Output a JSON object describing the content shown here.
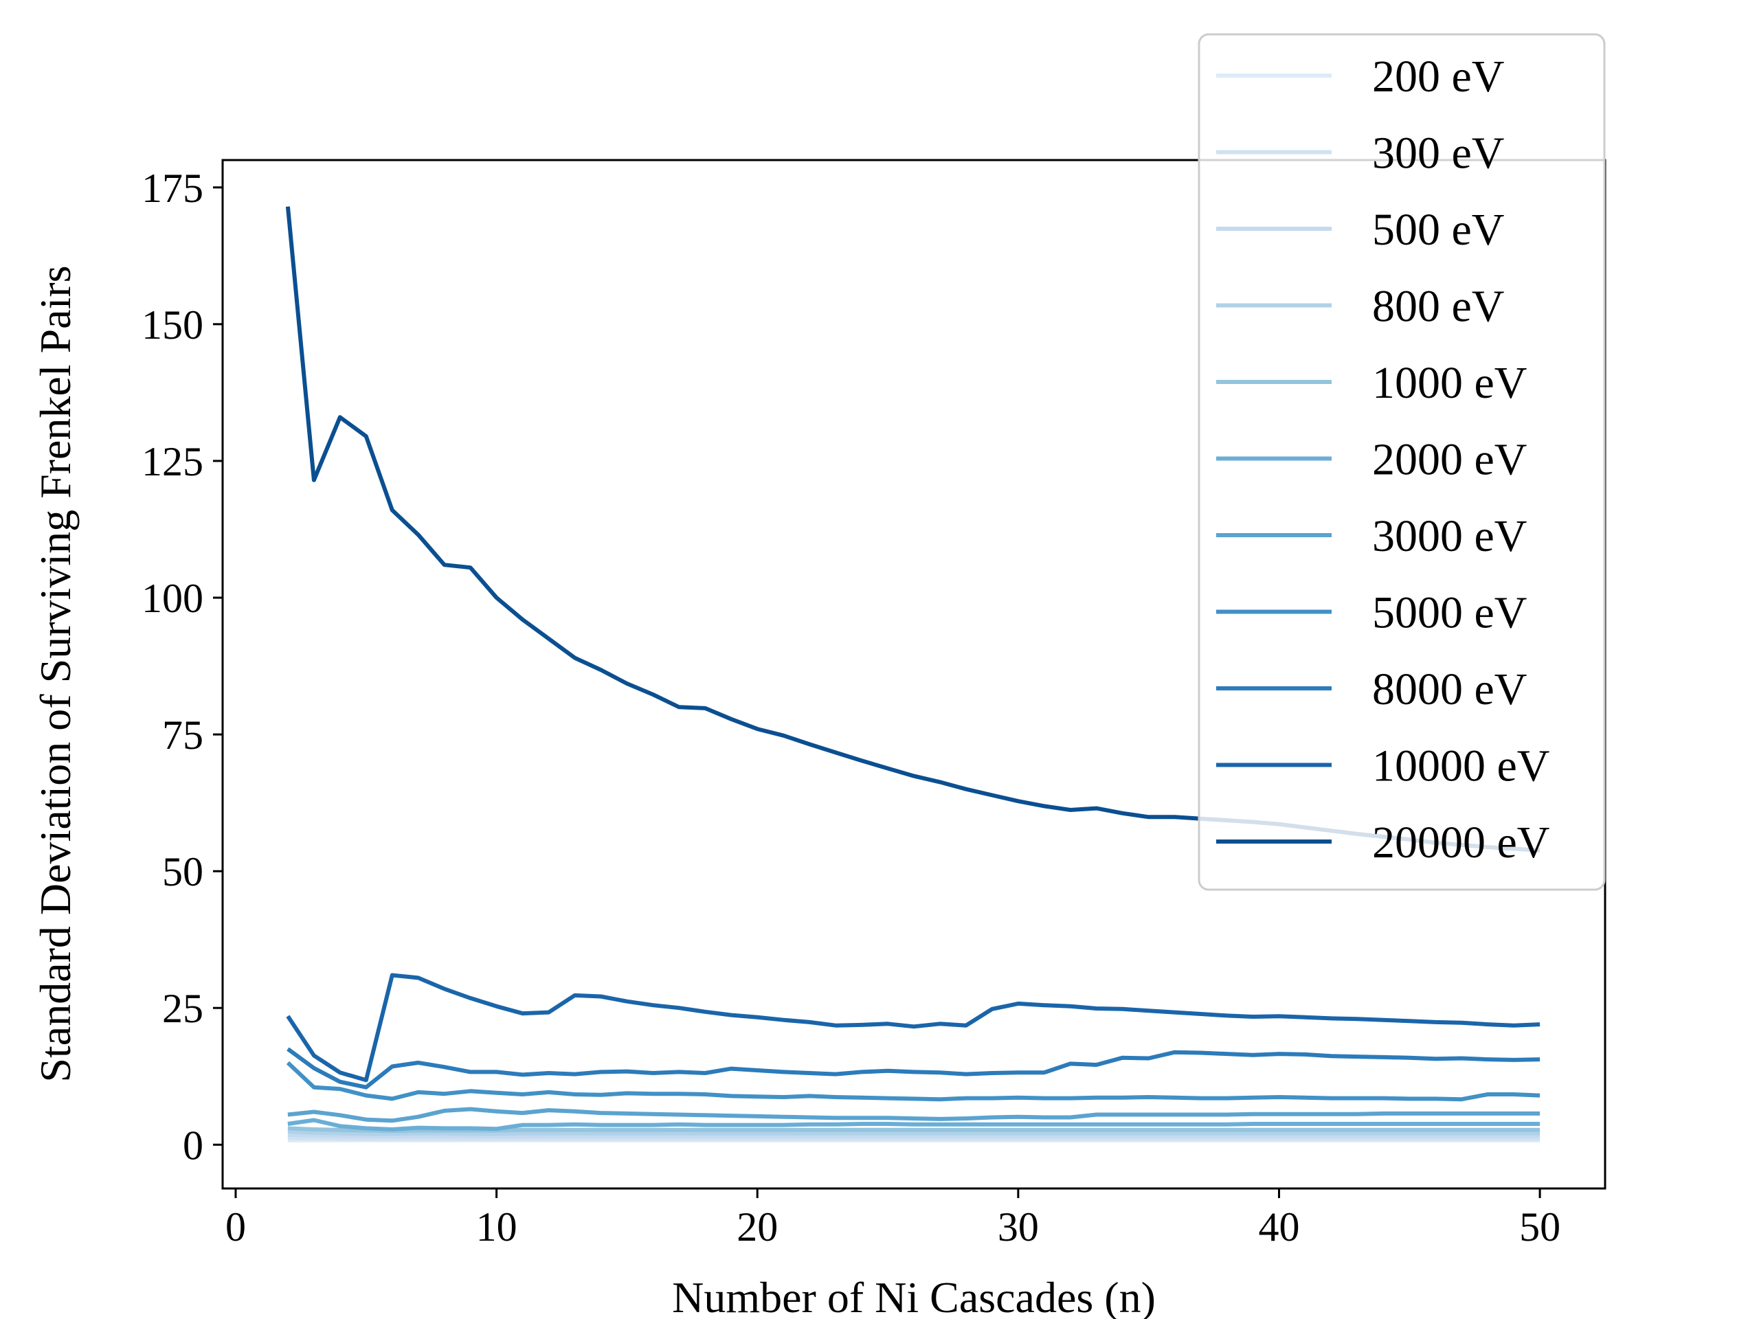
{
  "chart_data": {
    "type": "line",
    "xlabel": "Number of Ni Cascades (n)",
    "ylabel": "Standard Deviation of Surviving Frenkel Pairs",
    "xlim": [
      -0.5,
      52.5
    ],
    "ylim": [
      -8,
      180
    ],
    "xticks": [
      0,
      10,
      20,
      30,
      40,
      50
    ],
    "yticks": [
      0,
      25,
      50,
      75,
      100,
      125,
      150,
      175
    ],
    "grid": false,
    "legend_position": "upper right",
    "x": [
      2,
      3,
      4,
      5,
      6,
      7,
      8,
      9,
      10,
      11,
      12,
      13,
      14,
      15,
      16,
      17,
      18,
      19,
      20,
      21,
      22,
      23,
      24,
      25,
      26,
      27,
      28,
      29,
      30,
      31,
      32,
      33,
      34,
      35,
      36,
      37,
      38,
      39,
      40,
      41,
      42,
      43,
      44,
      45,
      46,
      47,
      48,
      49,
      50
    ],
    "series": [
      {
        "name": "200 eV",
        "color": "#deebf7",
        "values": [
          0.8,
          0.8,
          0.8,
          0.8,
          0.8,
          0.8,
          0.8,
          0.8,
          0.8,
          0.8,
          0.8,
          0.8,
          0.8,
          0.8,
          0.8,
          0.8,
          0.8,
          0.8,
          0.8,
          0.8,
          0.8,
          0.8,
          0.8,
          0.8,
          0.8,
          0.8,
          0.8,
          0.8,
          0.8,
          0.8,
          0.8,
          0.8,
          0.8,
          0.8,
          0.8,
          0.8,
          0.8,
          0.8,
          0.8,
          0.8,
          0.8,
          0.8,
          0.8,
          0.8,
          0.8,
          0.8,
          0.8,
          0.8,
          0.8
        ]
      },
      {
        "name": "300 eV",
        "color": "#d0e1f2",
        "values": [
          1.2,
          1.2,
          1.1,
          1.1,
          1.1,
          1.1,
          1.1,
          1.1,
          1.1,
          1.1,
          1.1,
          1.1,
          1.1,
          1.1,
          1.1,
          1.1,
          1.1,
          1.1,
          1.1,
          1.1,
          1.1,
          1.1,
          1.1,
          1.1,
          1.1,
          1.1,
          1.1,
          1.1,
          1.1,
          1.1,
          1.1,
          1.1,
          1.1,
          1.1,
          1.1,
          1.1,
          1.1,
          1.1,
          1.1,
          1.1,
          1.1,
          1.1,
          1.1,
          1.1,
          1.1,
          1.1,
          1.1,
          1.1,
          1.1
        ]
      },
      {
        "name": "500 eV",
        "color": "#c4daee",
        "values": [
          1.8,
          1.7,
          1.6,
          1.6,
          1.5,
          1.6,
          1.6,
          1.6,
          1.5,
          1.5,
          1.6,
          1.6,
          1.6,
          1.6,
          1.6,
          1.6,
          1.6,
          1.6,
          1.6,
          1.6,
          1.6,
          1.6,
          1.6,
          1.6,
          1.6,
          1.6,
          1.6,
          1.6,
          1.6,
          1.6,
          1.6,
          1.6,
          1.6,
          1.6,
          1.6,
          1.6,
          1.6,
          1.6,
          1.6,
          1.6,
          1.6,
          1.6,
          1.6,
          1.6,
          1.6,
          1.6,
          1.6,
          1.6,
          1.6
        ]
      },
      {
        "name": "800 eV",
        "color": "#b0d2e8",
        "values": [
          2.4,
          2.2,
          2.1,
          2.0,
          2.0,
          2.1,
          2.1,
          2.0,
          2.0,
          2.1,
          2.1,
          2.1,
          2.1,
          2.1,
          2.1,
          2.1,
          2.1,
          2.1,
          2.1,
          2.1,
          2.1,
          2.1,
          2.1,
          2.1,
          2.1,
          2.1,
          2.1,
          2.1,
          2.1,
          2.1,
          2.1,
          2.1,
          2.1,
          2.1,
          2.1,
          2.1,
          2.1,
          2.1,
          2.1,
          2.1,
          2.1,
          2.1,
          2.1,
          2.1,
          2.1,
          2.1,
          2.1,
          2.1,
          2.1
        ]
      },
      {
        "name": "1000 eV",
        "color": "#94c4df",
        "values": [
          3.0,
          2.8,
          2.7,
          2.6,
          2.5,
          2.6,
          2.6,
          2.6,
          2.6,
          2.7,
          2.7,
          2.7,
          2.7,
          2.7,
          2.7,
          2.7,
          2.7,
          2.7,
          2.7,
          2.7,
          2.7,
          2.7,
          2.7,
          2.7,
          2.7,
          2.7,
          2.7,
          2.7,
          2.7,
          2.7,
          2.7,
          2.7,
          2.7,
          2.7,
          2.7,
          2.7,
          2.7,
          2.7,
          2.7,
          2.7,
          2.7,
          2.7,
          2.7,
          2.7,
          2.7,
          2.7,
          2.7,
          2.7,
          2.7
        ]
      },
      {
        "name": "2000 eV",
        "color": "#6aaed6",
        "values": [
          3.8,
          4.5,
          3.4,
          3.0,
          2.8,
          3.1,
          3.0,
          3.0,
          2.9,
          3.6,
          3.6,
          3.7,
          3.6,
          3.6,
          3.6,
          3.7,
          3.6,
          3.6,
          3.6,
          3.6,
          3.7,
          3.7,
          3.8,
          3.8,
          3.7,
          3.7,
          3.7,
          3.7,
          3.7,
          3.7,
          3.7,
          3.7,
          3.7,
          3.7,
          3.7,
          3.7,
          3.7,
          3.8,
          3.8,
          3.8,
          3.8,
          3.8,
          3.8,
          3.8,
          3.8,
          3.8,
          3.8,
          3.8,
          3.8
        ]
      },
      {
        "name": "3000 eV",
        "color": "#5ba3d0",
        "values": [
          5.5,
          6.0,
          5.4,
          4.6,
          4.4,
          5.1,
          6.2,
          6.5,
          6.1,
          5.8,
          6.3,
          6.1,
          5.8,
          5.7,
          5.6,
          5.5,
          5.4,
          5.3,
          5.2,
          5.1,
          5.0,
          4.9,
          4.9,
          4.9,
          4.8,
          4.7,
          4.8,
          5.0,
          5.1,
          5.0,
          5.0,
          5.5,
          5.5,
          5.5,
          5.5,
          5.5,
          5.5,
          5.6,
          5.6,
          5.6,
          5.6,
          5.6,
          5.7,
          5.7,
          5.7,
          5.7,
          5.7,
          5.7,
          5.7
        ]
      },
      {
        "name": "5000 eV",
        "color": "#4191c6",
        "values": [
          15.0,
          10.5,
          10.2,
          9.0,
          8.4,
          9.6,
          9.3,
          9.8,
          9.5,
          9.2,
          9.6,
          9.2,
          9.1,
          9.4,
          9.3,
          9.3,
          9.2,
          8.9,
          8.8,
          8.7,
          8.9,
          8.7,
          8.6,
          8.5,
          8.4,
          8.3,
          8.5,
          8.5,
          8.6,
          8.5,
          8.5,
          8.6,
          8.6,
          8.7,
          8.6,
          8.5,
          8.5,
          8.6,
          8.7,
          8.6,
          8.5,
          8.5,
          8.5,
          8.4,
          8.4,
          8.3,
          9.2,
          9.2,
          9.0
        ]
      },
      {
        "name": "8000 eV",
        "color": "#2c7bba",
        "values": [
          17.5,
          14.0,
          11.5,
          10.5,
          14.3,
          15.0,
          14.2,
          13.3,
          13.3,
          12.8,
          13.1,
          12.9,
          13.3,
          13.4,
          13.1,
          13.3,
          13.1,
          13.9,
          13.6,
          13.3,
          13.1,
          12.9,
          13.3,
          13.5,
          13.3,
          13.2,
          12.9,
          13.1,
          13.2,
          13.2,
          14.8,
          14.6,
          15.9,
          15.8,
          16.9,
          16.8,
          16.6,
          16.4,
          16.6,
          16.5,
          16.2,
          16.1,
          16.0,
          15.9,
          15.7,
          15.8,
          15.6,
          15.5,
          15.6
        ]
      },
      {
        "name": "10000 eV",
        "color": "#1a65aa",
        "values": [
          23.5,
          16.3,
          13.2,
          11.8,
          31.0,
          30.5,
          28.5,
          26.8,
          25.3,
          24.0,
          24.2,
          27.3,
          27.1,
          26.2,
          25.5,
          25.0,
          24.3,
          23.7,
          23.3,
          22.8,
          22.4,
          21.8,
          21.9,
          22.1,
          21.6,
          22.1,
          21.8,
          24.8,
          25.8,
          25.5,
          25.3,
          24.9,
          24.8,
          24.5,
          24.2,
          23.9,
          23.6,
          23.4,
          23.5,
          23.3,
          23.1,
          23.0,
          22.8,
          22.6,
          22.4,
          22.3,
          22.0,
          21.8,
          22.0
        ]
      },
      {
        "name": "20000 eV",
        "color": "#0b4f91",
        "values": [
          171.5,
          121.5,
          133.0,
          129.5,
          116.0,
          111.5,
          106.0,
          105.5,
          100.0,
          96.0,
          92.5,
          89.0,
          86.8,
          84.3,
          82.3,
          80.0,
          79.8,
          77.8,
          76.0,
          74.8,
          73.2,
          71.7,
          70.2,
          68.8,
          67.4,
          66.3,
          65.0,
          63.9,
          62.8,
          61.9,
          61.2,
          61.5,
          60.6,
          59.9,
          59.9,
          59.6,
          59.3,
          59.0,
          58.6,
          58.0,
          57.4,
          56.8,
          56.3,
          55.8,
          55.2,
          54.8,
          54.4,
          54.1,
          53.8
        ]
      }
    ]
  }
}
